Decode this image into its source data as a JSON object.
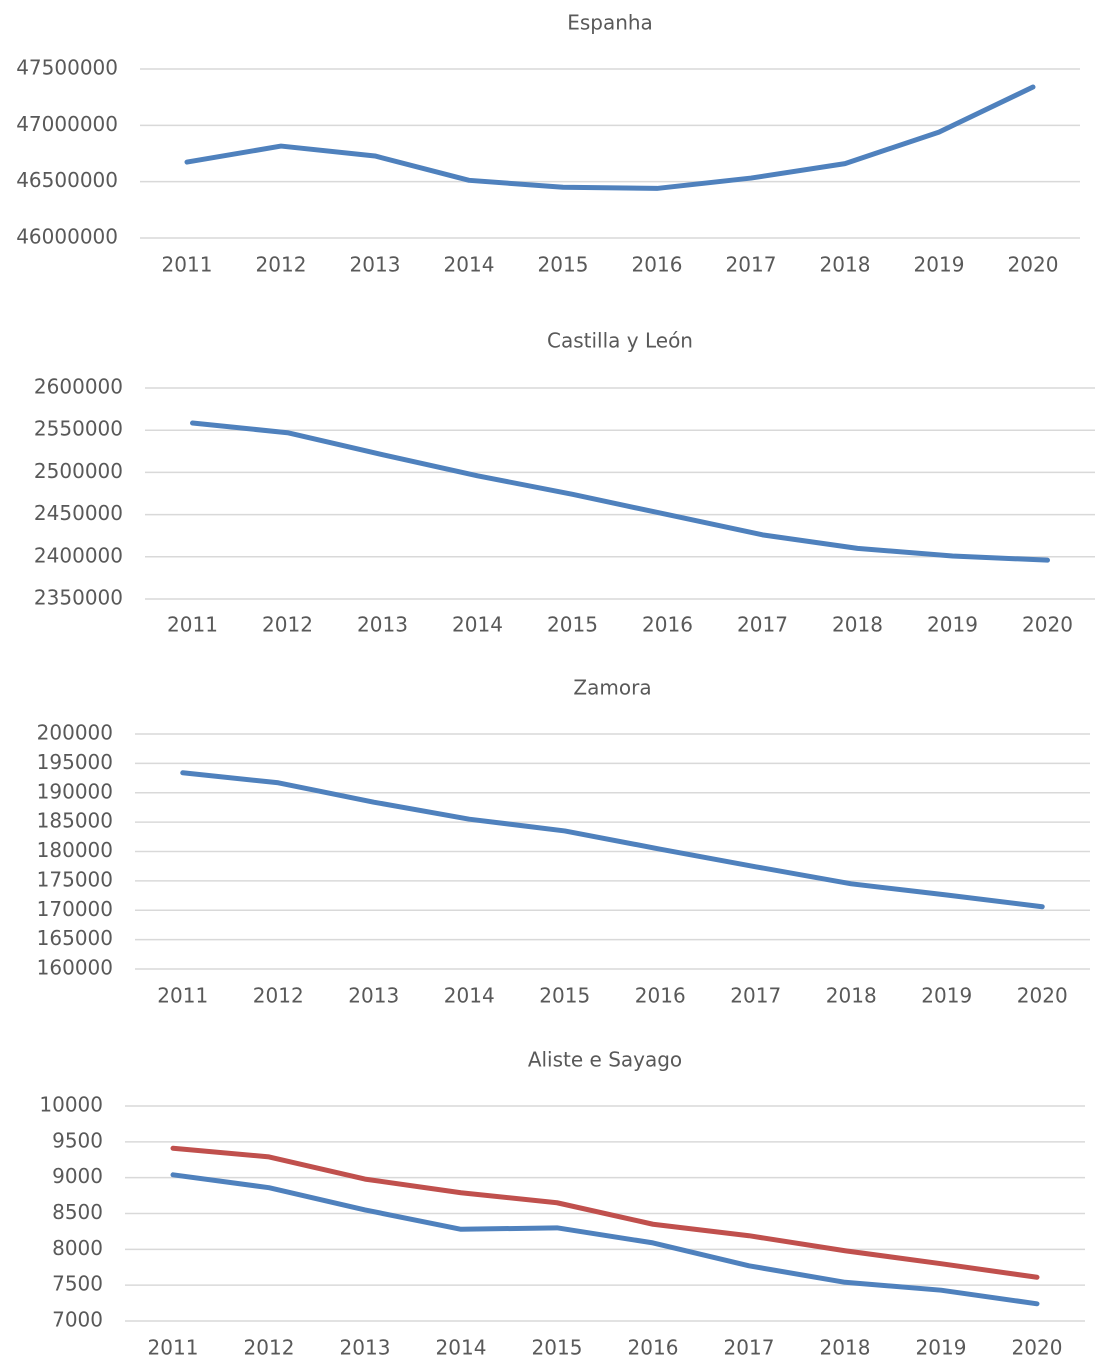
{
  "chart_data": [
    {
      "type": "line",
      "title": "Espanha",
      "categories": [
        "2011",
        "2012",
        "2013",
        "2014",
        "2015",
        "2016",
        "2017",
        "2018",
        "2019",
        "2020"
      ],
      "series": [
        {
          "color": "#4f81bd",
          "values": [
            46674000,
            46816000,
            46728000,
            46512000,
            46450000,
            46440000,
            46532000,
            46660000,
            46940000,
            47340000
          ]
        }
      ],
      "ylim": [
        46000000,
        47500000
      ],
      "yticks": [
        46000000,
        46500000,
        47000000,
        47500000
      ],
      "grid": true
    },
    {
      "type": "line",
      "title": "Castilla y León",
      "categories": [
        "2011",
        "2012",
        "2013",
        "2014",
        "2015",
        "2016",
        "2017",
        "2018",
        "2019",
        "2020"
      ],
      "series": [
        {
          "color": "#4f81bd",
          "values": [
            2558500,
            2547000,
            2521000,
            2496000,
            2474000,
            2450000,
            2426000,
            2410000,
            2401000,
            2396000
          ]
        }
      ],
      "ylim": [
        2350000,
        2600000
      ],
      "yticks": [
        2350000,
        2400000,
        2450000,
        2500000,
        2550000,
        2600000
      ],
      "grid": true
    },
    {
      "type": "line",
      "title": "Zamora",
      "categories": [
        "2011",
        "2012",
        "2013",
        "2014",
        "2015",
        "2016",
        "2017",
        "2018",
        "2019",
        "2020"
      ],
      "series": [
        {
          "color": "#4f81bd",
          "values": [
            193400,
            191700,
            188400,
            185500,
            183500,
            180400,
            177400,
            174500,
            172600,
            170600
          ]
        }
      ],
      "ylim": [
        160000,
        200000
      ],
      "yticks": [
        160000,
        165000,
        170000,
        175000,
        180000,
        185000,
        190000,
        195000,
        200000
      ],
      "grid": true
    },
    {
      "type": "line",
      "title": "Aliste e Sayago",
      "categories": [
        "2011",
        "2012",
        "2013",
        "2014",
        "2015",
        "2016",
        "2017",
        "2018",
        "2019",
        "2020"
      ],
      "series": [
        {
          "color": "#c0504d",
          "values": [
            9410,
            9290,
            8980,
            8790,
            8650,
            8350,
            8190,
            7980,
            7800,
            7610
          ]
        },
        {
          "color": "#4f81bd",
          "values": [
            9040,
            8860,
            8550,
            8280,
            8300,
            8090,
            7770,
            7540,
            7430,
            7240
          ]
        }
      ],
      "ylim": [
        7000,
        10000
      ],
      "yticks": [
        7000,
        7500,
        8000,
        8500,
        9000,
        9500,
        10000
      ],
      "grid": true
    }
  ]
}
